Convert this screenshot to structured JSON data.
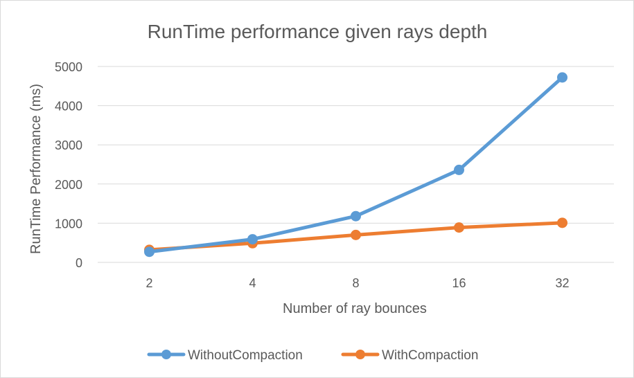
{
  "chart_data": {
    "type": "line",
    "title": "RunTime performance given rays depth",
    "xlabel": "Number of ray bounces",
    "ylabel": "RunTime Performance (ms)",
    "categories": [
      "2",
      "4",
      "8",
      "16",
      "32"
    ],
    "yticks": [
      "0",
      "1000",
      "2000",
      "3000",
      "4000",
      "5000"
    ],
    "ylim": [
      0,
      5000
    ],
    "grid": true,
    "legend_position": "bottom",
    "series": [
      {
        "name": "WithoutCompaction",
        "color": "#5B9BD5",
        "values": [
          270,
          590,
          1180,
          2360,
          4720
        ]
      },
      {
        "name": "WithCompaction",
        "color": "#ED7D31",
        "values": [
          320,
          490,
          700,
          890,
          1010
        ]
      }
    ]
  }
}
